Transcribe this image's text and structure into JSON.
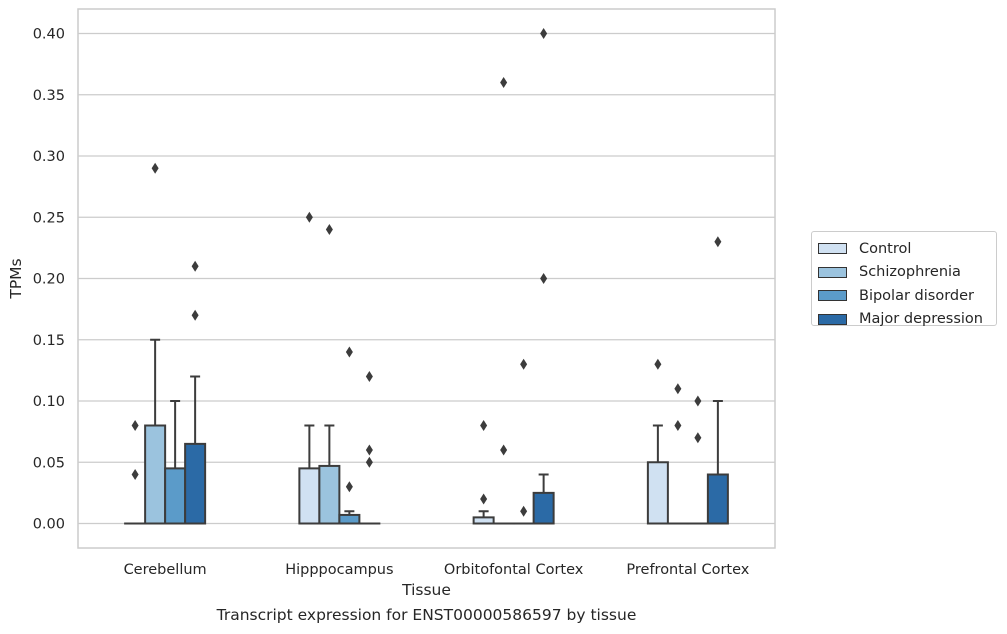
{
  "caption": "Transcript expression for ENST00000586597 by tissue",
  "chart_data": {
    "type": "boxplot",
    "xlabel": "Tissue",
    "ylabel": "TPMs",
    "ylim": [
      -0.02,
      0.42
    ],
    "yticks": [
      0.0,
      0.05,
      0.1,
      0.15,
      0.2,
      0.25,
      0.3,
      0.35,
      0.4
    ],
    "ytick_labels": [
      "0.00",
      "0.05",
      "0.10",
      "0.15",
      "0.20",
      "0.25",
      "0.30",
      "0.35",
      "0.40"
    ],
    "grid": true,
    "legend_position": "right",
    "categories": [
      "Cerebellum",
      "Hipppocampus",
      "Orbitofontal Cortex",
      "Prefrontal Cortex"
    ],
    "series": [
      {
        "name": "Control",
        "color": "#d0e1f2",
        "boxes": [
          {
            "q1": 0,
            "median": 0,
            "q3": 0,
            "whisker_low": 0,
            "whisker_high": 0,
            "outliers": [
              0.04,
              0.08
            ]
          },
          {
            "q1": 0,
            "median": 0,
            "q3": 0.045,
            "whisker_low": 0,
            "whisker_high": 0.08,
            "outliers": [
              0.25
            ]
          },
          {
            "q1": 0,
            "median": 0,
            "q3": 0.005,
            "whisker_low": 0,
            "whisker_high": 0.01,
            "outliers": [
              0.02,
              0.08
            ]
          },
          {
            "q1": 0,
            "median": 0,
            "q3": 0.05,
            "whisker_low": 0,
            "whisker_high": 0.08,
            "outliers": [
              0.13
            ]
          }
        ]
      },
      {
        "name": "Schizophrenia",
        "color": "#9bc3de",
        "boxes": [
          {
            "q1": 0,
            "median": 0,
            "q3": 0.08,
            "whisker_low": 0,
            "whisker_high": 0.15,
            "outliers": [
              0.29
            ]
          },
          {
            "q1": 0,
            "median": 0,
            "q3": 0.047,
            "whisker_low": 0,
            "whisker_high": 0.08,
            "outliers": [
              0.24
            ]
          },
          {
            "q1": 0,
            "median": 0,
            "q3": 0,
            "whisker_low": 0,
            "whisker_high": 0,
            "outliers": [
              0.06,
              0.36
            ]
          },
          {
            "q1": 0,
            "median": 0,
            "q3": 0,
            "whisker_low": 0,
            "whisker_high": 0,
            "outliers": [
              0.08,
              0.11
            ]
          }
        ]
      },
      {
        "name": "Bipolar disorder",
        "color": "#5b9bc9",
        "boxes": [
          {
            "q1": 0,
            "median": 0,
            "q3": 0.045,
            "whisker_low": 0,
            "whisker_high": 0.1,
            "outliers": []
          },
          {
            "q1": 0,
            "median": 0,
            "q3": 0.007,
            "whisker_low": 0,
            "whisker_high": 0.01,
            "outliers": [
              0.03,
              0.14
            ]
          },
          {
            "q1": 0,
            "median": 0,
            "q3": 0,
            "whisker_low": 0,
            "whisker_high": 0,
            "outliers": [
              0.01,
              0.13
            ]
          },
          {
            "q1": 0,
            "median": 0,
            "q3": 0,
            "whisker_low": 0,
            "whisker_high": 0,
            "outliers": [
              0.07,
              0.1
            ]
          }
        ]
      },
      {
        "name": "Major depression",
        "color": "#2b6aa6",
        "boxes": [
          {
            "q1": 0,
            "median": 0,
            "q3": 0.065,
            "whisker_low": 0,
            "whisker_high": 0.12,
            "outliers": [
              0.17,
              0.21
            ]
          },
          {
            "q1": 0,
            "median": 0,
            "q3": 0,
            "whisker_low": 0,
            "whisker_high": 0,
            "outliers": [
              0.05,
              0.06,
              0.12
            ]
          },
          {
            "q1": 0,
            "median": 0,
            "q3": 0.025,
            "whisker_low": 0,
            "whisker_high": 0.04,
            "outliers": [
              0.2,
              0.4
            ]
          },
          {
            "q1": 0,
            "median": 0,
            "q3": 0.04,
            "whisker_low": 0,
            "whisker_high": 0.1,
            "outliers": [
              0.23
            ]
          }
        ]
      }
    ]
  }
}
